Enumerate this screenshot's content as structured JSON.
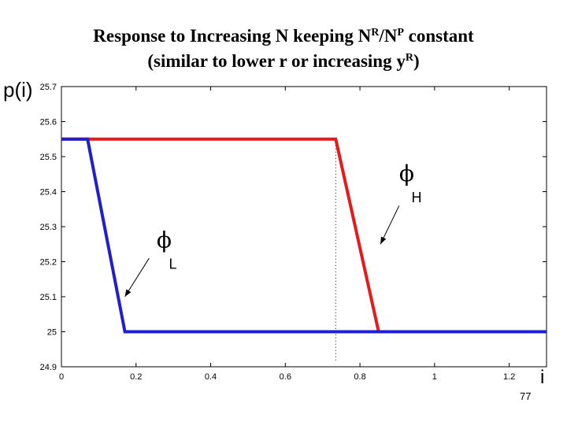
{
  "title": {
    "line1_a": "Response to Increasing N keeping N",
    "line1_sup1": "R",
    "line1_b": "/N",
    "line1_sup2": "P",
    "line1_c": " constant",
    "line2_a": "(similar to lower r or increasing y",
    "line2_sup": "R",
    "line2_b": ")"
  },
  "page_number": "77",
  "colors": {
    "phi_H": "#e8191b",
    "phi_L": "#1f1fcf",
    "axis": "#000000"
  },
  "chart_data": {
    "type": "line",
    "xlabel": "i",
    "ylabel": "p(i)",
    "xlim": [
      0,
      1.3
    ],
    "ylim": [
      24.9,
      25.7
    ],
    "xticks": [
      0,
      0.2,
      0.4,
      0.6,
      0.8,
      1,
      1.2
    ],
    "xtick_labels": [
      "0",
      "0.2",
      "0.4",
      "0.6",
      "0.8",
      "1",
      "1.2"
    ],
    "yticks": [
      24.9,
      25,
      25.1,
      25.2,
      25.3,
      25.4,
      25.5,
      25.6,
      25.7
    ],
    "ytick_labels": [
      "24.9",
      "25",
      "25.1",
      "25.2",
      "25.3",
      "25.4",
      "25.5",
      "25.6",
      "25.7"
    ],
    "grid": false,
    "series": [
      {
        "name": "ϕH",
        "color": "#e8191b",
        "x": [
          0,
          0.735,
          0.85,
          1.3
        ],
        "y": [
          25.55,
          25.55,
          25.0,
          25.0
        ]
      },
      {
        "name": "ϕL",
        "color": "#1f1fcf",
        "x": [
          0,
          0.07,
          0.17,
          1.3
        ],
        "y": [
          25.55,
          25.55,
          25.0,
          25.0
        ]
      }
    ],
    "vline": {
      "x": 0.735,
      "style": "dotted"
    },
    "annotations": [
      {
        "label_main": "ϕ",
        "label_sub": "H",
        "target_series": "ϕH"
      },
      {
        "label_main": "ϕ",
        "label_sub": "L",
        "target_series": "ϕL"
      }
    ]
  }
}
